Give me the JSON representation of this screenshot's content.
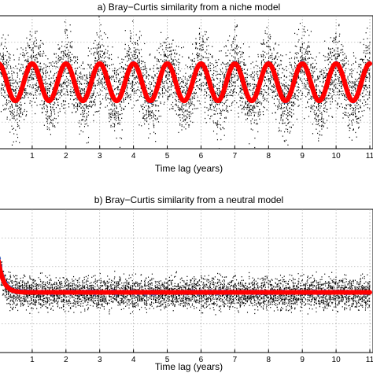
{
  "chart_data": [
    {
      "type": "scatter",
      "title": "a) Bray−Curtis similarity from a niche model",
      "xlabel": "Time lag (years)",
      "ylabel": "",
      "xlim": [
        0,
        11
      ],
      "ylim": [
        0,
        1
      ],
      "x_ticks": [
        1,
        2,
        3,
        4,
        5,
        6,
        7,
        8,
        9,
        10,
        11
      ],
      "grid": true,
      "series": [
        {
          "kind": "scatter-cloud",
          "color": "#000000",
          "center": 0.5,
          "amplitude": 0.12,
          "period_years": 1,
          "spread": 0.42
        },
        {
          "kind": "points",
          "color": "#3366cc",
          "center": 0.5,
          "amplitude": 0.14,
          "period_years": 1
        },
        {
          "kind": "fit-line",
          "color": "#ff0000",
          "center": 0.5,
          "amplitude": 0.14,
          "period_years": 1
        }
      ]
    },
    {
      "type": "scatter",
      "title": "b) Bray−Curtis similarity from a neutral model",
      "xlabel": "Time lag (years)",
      "ylabel": "",
      "xlim": [
        0,
        11
      ],
      "ylim": [
        0,
        1
      ],
      "x_ticks": [
        1,
        2,
        3,
        4,
        5,
        6,
        7,
        8,
        9,
        10,
        11
      ],
      "grid": true,
      "series": [
        {
          "kind": "scatter-cloud",
          "color": "#000000",
          "plateau": 0.42,
          "spread": 0.16
        },
        {
          "kind": "points",
          "color": "#3366cc",
          "start": 0.7,
          "plateau": 0.42,
          "decay_years": 0.15
        },
        {
          "kind": "fit-line",
          "color": "#ff0000",
          "start": 0.64,
          "plateau": 0.42,
          "decay_years": 0.15
        }
      ]
    }
  ]
}
